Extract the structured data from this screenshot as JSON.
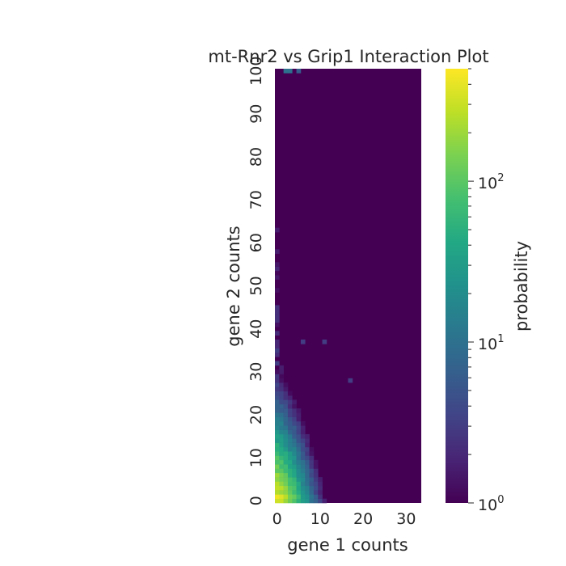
{
  "chart_data": {
    "type": "heatmap",
    "title": "mt-Rnr2 vs Grip1 Interaction Plot",
    "xlabel": "gene 1 counts",
    "ylabel": "gene 2 counts",
    "x_ticks": [
      "0",
      "10",
      "20",
      "30"
    ],
    "y_ticks": [
      "0",
      "10",
      "20",
      "30",
      "40",
      "50",
      "60",
      "70",
      "80",
      "90",
      "100"
    ],
    "xlim": [
      0,
      33
    ],
    "ylim": [
      0,
      100
    ],
    "colorbar": {
      "label": "probability",
      "scale": "log",
      "colormap": "viridis",
      "range": [
        1,
        500
      ],
      "tick_values": [
        1,
        10,
        100
      ],
      "tick_bases": [
        "10",
        "10",
        "10"
      ],
      "tick_exponents": [
        "0",
        "1",
        "2"
      ]
    },
    "dense_region": {
      "description_of_values": "probability mass concentrated near gene 1 counts 0–8 and gene 2 counts 0–25, peaking near (0–1, 0–5) at about 400; values decay with distance; most cells equal 1",
      "peak_value": 400
    },
    "outliers": [
      {
        "x": 6,
        "y": 37,
        "value": 3
      },
      {
        "x": 11,
        "y": 37,
        "value": 3
      },
      {
        "x": 17,
        "y": 28,
        "value": 3
      },
      {
        "x": 2,
        "y": 100,
        "value": 10
      },
      {
        "x": 3,
        "y": 100,
        "value": 10
      },
      {
        "x": 5,
        "y": 100,
        "value": 6
      }
    ],
    "grid": false,
    "colors": {
      "background": "#ffffff",
      "low": "#440154",
      "high": "#fde725"
    }
  }
}
